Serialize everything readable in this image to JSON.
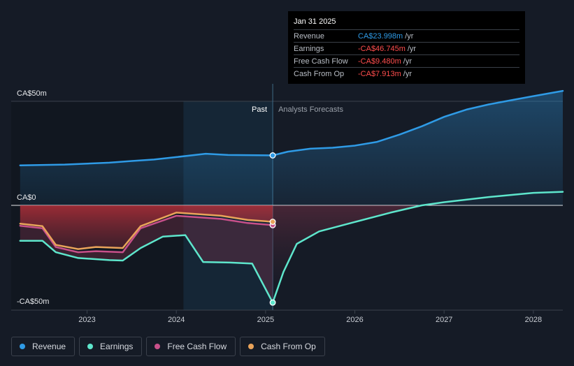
{
  "tooltip": {
    "date": "Jan 31 2025",
    "rows": [
      {
        "label": "Revenue",
        "value": "CA$23.998m",
        "unit": "/yr",
        "color": "#2f9be6"
      },
      {
        "label": "Earnings",
        "value": "-CA$46.745m",
        "unit": "/yr",
        "color": "#ff4d4d"
      },
      {
        "label": "Free Cash Flow",
        "value": "-CA$9.480m",
        "unit": "/yr",
        "color": "#ff4d4d"
      },
      {
        "label": "Cash From Op",
        "value": "-CA$7.913m",
        "unit": "/yr",
        "color": "#ff4d4d"
      }
    ]
  },
  "labels": {
    "past": "Past",
    "forecast": "Analysts Forecasts"
  },
  "legend": [
    {
      "label": "Revenue",
      "color": "#2f9be6"
    },
    {
      "label": "Earnings",
      "color": "#5ee6cc"
    },
    {
      "label": "Free Cash Flow",
      "color": "#c8508a"
    },
    {
      "label": "Cash From Op",
      "color": "#e9a35a"
    }
  ],
  "chart_data": {
    "type": "line",
    "ylim": [
      -50,
      50
    ],
    "xlim": [
      2022.15,
      2028.33
    ],
    "y_tick_labels": [
      {
        "value": 50,
        "label": "CA$50m"
      },
      {
        "value": 0,
        "label": "CA$0"
      },
      {
        "value": -50,
        "label": "-CA$50m"
      }
    ],
    "x_ticks": [
      2023,
      2024,
      2025,
      2026,
      2027,
      2028
    ],
    "x_tick_labels": [
      "2023",
      "2024",
      "2025",
      "2026",
      "2027",
      "2028"
    ],
    "past_end": 2025.08,
    "highlight_band": [
      2024.08,
      2025.08
    ],
    "series": [
      {
        "name": "Revenue",
        "color": "#2f9be6",
        "values": [
          [
            2022.25,
            19.2
          ],
          [
            2022.75,
            19.6
          ],
          [
            2023.25,
            20.5
          ],
          [
            2023.5,
            21.3
          ],
          [
            2023.75,
            22.0
          ],
          [
            2024.0,
            23.2
          ],
          [
            2024.33,
            24.8
          ],
          [
            2024.58,
            24.2
          ],
          [
            2025.08,
            24.0
          ],
          [
            2025.25,
            25.8
          ],
          [
            2025.5,
            27.2
          ],
          [
            2025.75,
            27.7
          ],
          [
            2026.0,
            28.7
          ],
          [
            2026.25,
            30.5
          ],
          [
            2026.5,
            34.0
          ],
          [
            2026.75,
            38.0
          ],
          [
            2027.0,
            42.5
          ],
          [
            2027.25,
            46.0
          ],
          [
            2027.5,
            48.5
          ],
          [
            2027.75,
            50.5
          ],
          [
            2028.0,
            52.5
          ],
          [
            2028.33,
            55.0
          ]
        ]
      },
      {
        "name": "Earnings",
        "color": "#5ee6cc",
        "values": [
          [
            2022.25,
            -17.0
          ],
          [
            2022.5,
            -17.0
          ],
          [
            2022.65,
            -22.5
          ],
          [
            2022.9,
            -25.3
          ],
          [
            2023.25,
            -26.3
          ],
          [
            2023.4,
            -26.5
          ],
          [
            2023.6,
            -20.5
          ],
          [
            2023.85,
            -15.0
          ],
          [
            2024.1,
            -14.3
          ],
          [
            2024.3,
            -27.2
          ],
          [
            2024.6,
            -27.5
          ],
          [
            2024.85,
            -28.0
          ],
          [
            2025.08,
            -46.7
          ],
          [
            2025.2,
            -32.0
          ],
          [
            2025.35,
            -18.5
          ],
          [
            2025.6,
            -12.5
          ],
          [
            2026.0,
            -8.0
          ],
          [
            2026.4,
            -3.5
          ],
          [
            2026.75,
            0.0
          ],
          [
            2027.0,
            1.5
          ],
          [
            2027.5,
            4.0
          ],
          [
            2028.0,
            6.0
          ],
          [
            2028.33,
            6.5
          ]
        ]
      },
      {
        "name": "Free Cash Flow",
        "color": "#c8508a",
        "values": [
          [
            2022.25,
            -9.8
          ],
          [
            2022.5,
            -11.0
          ],
          [
            2022.65,
            -20.0
          ],
          [
            2022.9,
            -22.5
          ],
          [
            2023.1,
            -22.0
          ],
          [
            2023.4,
            -22.5
          ],
          [
            2023.6,
            -11.0
          ],
          [
            2024.0,
            -5.0
          ],
          [
            2024.5,
            -6.5
          ],
          [
            2024.8,
            -8.5
          ],
          [
            2025.08,
            -9.5
          ]
        ]
      },
      {
        "name": "Cash From Op",
        "color": "#e9a35a",
        "values": [
          [
            2022.25,
            -8.8
          ],
          [
            2022.5,
            -10.0
          ],
          [
            2022.65,
            -19.0
          ],
          [
            2022.9,
            -21.0
          ],
          [
            2023.1,
            -20.0
          ],
          [
            2023.4,
            -20.5
          ],
          [
            2023.6,
            -10.0
          ],
          [
            2024.0,
            -3.5
          ],
          [
            2024.5,
            -5.0
          ],
          [
            2024.8,
            -7.0
          ],
          [
            2025.08,
            -7.9
          ]
        ]
      }
    ]
  }
}
